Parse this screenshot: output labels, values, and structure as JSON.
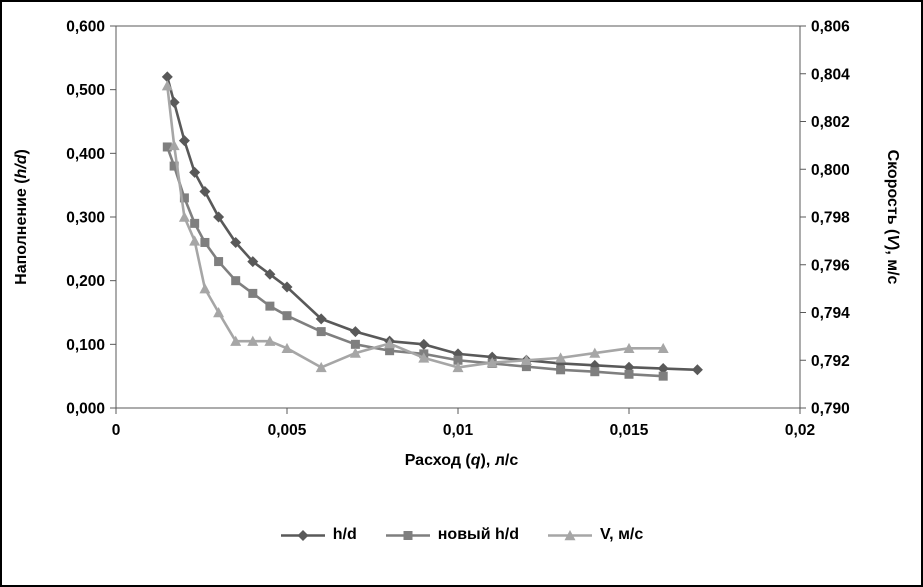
{
  "chart_data": {
    "type": "line",
    "grid": "off",
    "legend_position": "bottom",
    "x_axis": {
      "label_parts": [
        "Расход (",
        "q",
        "), л/с"
      ],
      "min": 0,
      "max": 0.02,
      "tick_values": [
        0,
        0.005,
        0.01,
        0.015,
        0.02
      ],
      "tick_labels": [
        "0",
        "0,005",
        "0,01",
        "0,015",
        "0,02"
      ]
    },
    "y_left": {
      "label_parts": [
        "Наполнение (",
        "h/d",
        ")"
      ],
      "min": 0,
      "max": 0.6,
      "tick_values": [
        0,
        0.1,
        0.2,
        0.3,
        0.4,
        0.5,
        0.6
      ],
      "tick_labels": [
        "0,000",
        "0,100",
        "0,200",
        "0,300",
        "0,400",
        "0,500",
        "0,600"
      ]
    },
    "y_right": {
      "label_parts": [
        "Скорость (",
        "V",
        "), м/с"
      ],
      "min": 0.79,
      "max": 0.806,
      "tick_values": [
        0.79,
        0.792,
        0.794,
        0.796,
        0.798,
        0.8,
        0.802,
        0.804,
        0.806
      ],
      "tick_labels": [
        "0,790",
        "0,792",
        "0,794",
        "0,796",
        "0,798",
        "0,800",
        "0,802",
        "0,804",
        "0,806"
      ]
    },
    "series": [
      {
        "name": "h/d",
        "axis": "left",
        "color": "#595959",
        "marker": "diamond",
        "x": [
          0.0015,
          0.0017,
          0.002,
          0.0023,
          0.0026,
          0.003,
          0.0035,
          0.004,
          0.0045,
          0.005,
          0.006,
          0.007,
          0.008,
          0.009,
          0.01,
          0.011,
          0.012,
          0.013,
          0.014,
          0.015,
          0.016,
          0.017
        ],
        "y": [
          0.52,
          0.48,
          0.42,
          0.37,
          0.34,
          0.3,
          0.26,
          0.23,
          0.21,
          0.19,
          0.14,
          0.12,
          0.105,
          0.1,
          0.085,
          0.08,
          0.075,
          0.07,
          0.067,
          0.064,
          0.062,
          0.06
        ]
      },
      {
        "name": "новый h/d",
        "axis": "left",
        "color": "#7f7f7f",
        "marker": "square",
        "x": [
          0.0015,
          0.0017,
          0.002,
          0.0023,
          0.0026,
          0.003,
          0.0035,
          0.004,
          0.0045,
          0.005,
          0.006,
          0.007,
          0.008,
          0.009,
          0.01,
          0.011,
          0.012,
          0.013,
          0.014,
          0.015,
          0.016
        ],
        "y": [
          0.41,
          0.38,
          0.33,
          0.29,
          0.26,
          0.23,
          0.2,
          0.18,
          0.16,
          0.145,
          0.12,
          0.1,
          0.09,
          0.085,
          0.075,
          0.07,
          0.065,
          0.06,
          0.057,
          0.053,
          0.05
        ]
      },
      {
        "name": "V, м/с",
        "axis": "right",
        "color": "#a6a6a6",
        "marker": "triangle",
        "x": [
          0.0015,
          0.0017,
          0.002,
          0.0023,
          0.0026,
          0.003,
          0.0035,
          0.004,
          0.0045,
          0.005,
          0.006,
          0.007,
          0.008,
          0.009,
          0.01,
          0.011,
          0.012,
          0.013,
          0.014,
          0.015,
          0.016
        ],
        "y": [
          0.8035,
          0.801,
          0.798,
          0.797,
          0.795,
          0.794,
          0.7928,
          0.7928,
          0.7928,
          0.7925,
          0.7917,
          0.7923,
          0.7927,
          0.7921,
          0.7917,
          0.7919,
          0.792,
          0.7921,
          0.7923,
          0.7925,
          0.7925
        ]
      }
    ],
    "axis_color": "#595959"
  }
}
